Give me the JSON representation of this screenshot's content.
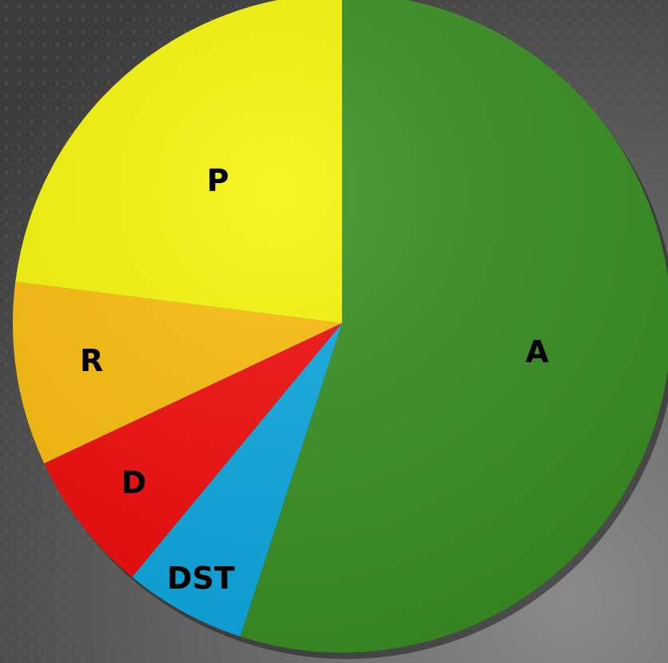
{
  "chart_data": {
    "type": "pie",
    "categories": [
      "A",
      "DST",
      "D",
      "R",
      "P"
    ],
    "values": [
      55,
      6,
      7,
      9,
      23
    ],
    "colors": [
      "#3a8f23",
      "#0ea8e0",
      "#f20d0d",
      "#fbbd0e",
      "#f5f50a"
    ]
  }
}
